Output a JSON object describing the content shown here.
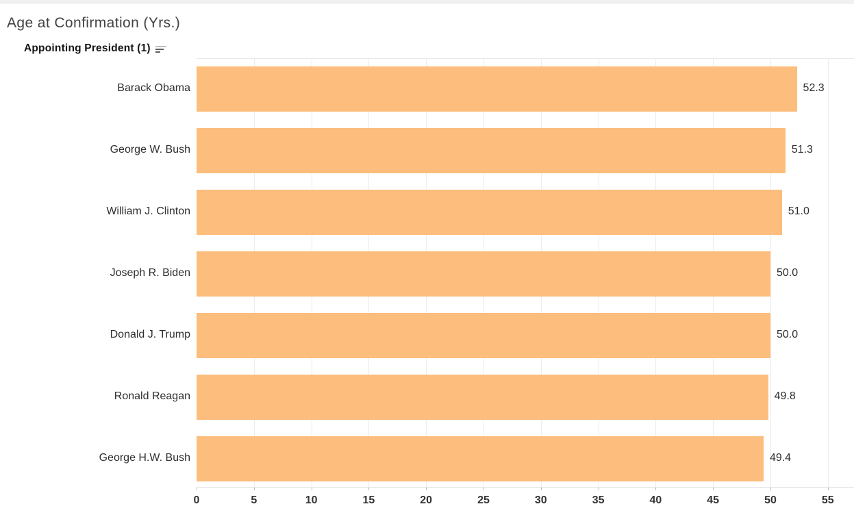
{
  "page": {
    "title": "Age at Confirmation (Yrs.)",
    "field_header": "Appointing President (1)",
    "sort_indicator": "sort-descending-icon"
  },
  "colors": {
    "bar": "#fcbd7d",
    "gridline": "#ececec",
    "plot_border": "#e9e9e9",
    "axis_line": "#e3e3e3",
    "tick_mark": "#bdbdbd",
    "title_text": "#424242",
    "label_text": "#2e2e2e",
    "top_strip": "#f1f1f1"
  },
  "chart_data": {
    "type": "bar",
    "orientation": "horizontal",
    "title": "Age at Confirmation (Yrs.)",
    "row_field": "Appointing President (1)",
    "sort": "descending by value",
    "categories": [
      "Barack Obama",
      "George W. Bush",
      "William J. Clinton",
      "Joseph R. Biden",
      "Donald J. Trump",
      "Ronald Reagan",
      "George H.W. Bush"
    ],
    "values": [
      52.3,
      51.3,
      51.0,
      50.0,
      50.0,
      49.8,
      49.4
    ],
    "value_labels": [
      "52.3",
      "51.3",
      "51.0",
      "50.0",
      "50.0",
      "49.8",
      "49.4"
    ],
    "xlabel": "",
    "ylabel": "",
    "xlim": [
      0,
      57.3
    ],
    "x_ticks": [
      0,
      5,
      10,
      15,
      20,
      25,
      30,
      35,
      40,
      45,
      50,
      55
    ],
    "grid": "vertical gridlines at each x tick",
    "legend": "none"
  }
}
